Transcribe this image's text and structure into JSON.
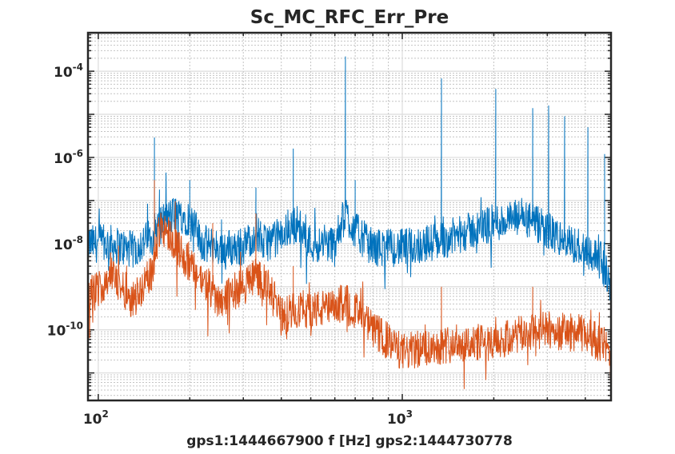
{
  "chart_data": {
    "type": "line",
    "title": "Sc_MC_RFC_Err_Pre",
    "xlabel": "gps1:1444667900  f [Hz]  gps2:1444730778",
    "ylabel": "",
    "xscale": "log",
    "yscale": "log",
    "xlim": [
      92.5,
      4860
    ],
    "ylim": [
      2.3e-12,
      0.00078
    ],
    "grid": true,
    "minor_grid": true,
    "x_ticks": [
      {
        "value": 100,
        "label": "10",
        "exp": "2"
      },
      {
        "value": 1000,
        "label": "10",
        "exp": "3"
      }
    ],
    "y_ticks": [
      {
        "value": 0.0001,
        "label": "10",
        "exp": "-4"
      },
      {
        "value": 1e-06,
        "label": "10",
        "exp": "-6"
      },
      {
        "value": 1e-08,
        "label": "10",
        "exp": "-8"
      },
      {
        "value": 1e-10,
        "label": "10",
        "exp": "-10"
      }
    ],
    "series": [
      {
        "color": "#0072BD",
        "baseline": [
          [
            93,
            1e-08
          ],
          [
            110,
            1e-08
          ],
          [
            130,
            7e-09
          ],
          [
            150,
            1.5e-08
          ],
          [
            160,
            3e-08
          ],
          [
            180,
            5e-08
          ],
          [
            200,
            4e-08
          ],
          [
            220,
            1e-08
          ],
          [
            250,
            8e-09
          ],
          [
            300,
            8e-09
          ],
          [
            330,
            2e-08
          ],
          [
            350,
            1e-08
          ],
          [
            400,
            1.5e-08
          ],
          [
            450,
            3e-08
          ],
          [
            500,
            1e-08
          ],
          [
            600,
            1e-08
          ],
          [
            650,
            5e-08
          ],
          [
            700,
            2e-08
          ],
          [
            800,
            8e-09
          ],
          [
            1000,
            8e-09
          ],
          [
            1200,
            1e-08
          ],
          [
            1500,
            1.5e-08
          ],
          [
            2000,
            3e-08
          ],
          [
            2500,
            4e-08
          ],
          [
            3000,
            2e-08
          ],
          [
            3500,
            1e-08
          ],
          [
            4000,
            8e-09
          ],
          [
            4500,
            4e-09
          ],
          [
            4860,
            1e-09
          ]
        ],
        "peaks": [
          [
            153,
            2.9e-06
          ],
          [
            159,
            1.8e-07
          ],
          [
            200,
            3e-07
          ],
          [
            330,
            2e-07
          ],
          [
            438,
            1.6e-06
          ],
          [
            650,
            0.00022
          ],
          [
            700,
            3e-07
          ],
          [
            1346,
            6.8e-05
          ],
          [
            2030,
            3.9e-05
          ],
          [
            2686,
            1.4e-05
          ],
          [
            3030,
            1.6e-05
          ],
          [
            3420,
            9e-06
          ],
          [
            4080,
            5e-06
          ],
          [
            4630,
            1.2e-06
          ]
        ]
      },
      {
        "color": "#D95319",
        "baseline": [
          [
            93,
            5e-10
          ],
          [
            110,
            2e-09
          ],
          [
            130,
            5e-10
          ],
          [
            150,
            2e-09
          ],
          [
            160,
            3e-08
          ],
          [
            180,
            1e-08
          ],
          [
            200,
            3e-09
          ],
          [
            250,
            5e-10
          ],
          [
            300,
            1e-09
          ],
          [
            330,
            2e-09
          ],
          [
            360,
            1e-09
          ],
          [
            400,
            2e-10
          ],
          [
            450,
            3e-10
          ],
          [
            500,
            3e-10
          ],
          [
            600,
            3e-10
          ],
          [
            650,
            5e-10
          ],
          [
            800,
            1e-10
          ],
          [
            1000,
            3e-11
          ],
          [
            1500,
            5e-11
          ],
          [
            2000,
            5e-11
          ],
          [
            2500,
            8e-11
          ],
          [
            3000,
            1e-10
          ],
          [
            4000,
            8e-11
          ],
          [
            4700,
            4e-11
          ],
          [
            4860,
            1e-11
          ]
        ],
        "peaks": [
          [
            153,
            3e-07
          ],
          [
            238,
            3e-08
          ],
          [
            330,
            5e-08
          ],
          [
            438,
            3e-09
          ],
          [
            650,
            1e-09
          ],
          [
            1346,
            1e-09
          ],
          [
            2030,
            2e-10
          ],
          [
            2686,
            1e-09
          ]
        ]
      }
    ]
  }
}
